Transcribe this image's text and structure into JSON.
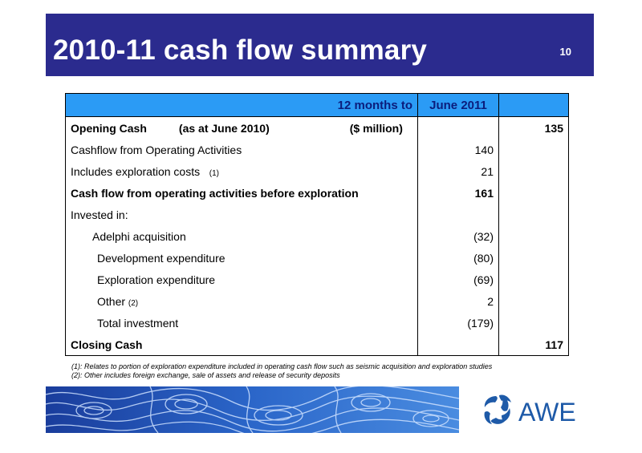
{
  "header": {
    "title": "2010-11 cash flow summary",
    "page_number": "10"
  },
  "table": {
    "head": {
      "period_label": "12 months to",
      "period_value": "June 2011"
    },
    "opening": {
      "label": "Opening Cash",
      "as_at": "(as at June 2010)",
      "units": "($ million)",
      "total": "135"
    },
    "rows": [
      {
        "label": "Cashflow from Operating Activities",
        "value": "140"
      },
      {
        "label": "Includes exploration costs",
        "note": "(1)",
        "value": "21"
      },
      {
        "label": "Cash flow from operating activities before exploration",
        "value": "161"
      },
      {
        "label": "Invested in:",
        "value": ""
      },
      {
        "label": "Adelphi acquisition",
        "value": "(32)"
      },
      {
        "label": "Development expenditure",
        "value": "(80)"
      },
      {
        "label": "Exploration expenditure",
        "value": "(69)"
      },
      {
        "label": "Other",
        "note": "(2)",
        "value": "2"
      },
      {
        "label": "Total investment",
        "value": "(179)"
      }
    ],
    "closing": {
      "label": "Closing Cash",
      "total": "117"
    }
  },
  "footnotes": [
    "(1):  Relates to portion of exploration expenditure included in operating cash flow such as seismic acquisition and exploration studies",
    "(2):  Other includes foreign exchange, sale of assets and release of security deposits"
  ],
  "logo": {
    "text": "AWE",
    "icon": "awe-tri-swirl-icon",
    "color": "#1e5aa8"
  },
  "colors": {
    "title_bar": "#2b2b8e",
    "table_header": "#2b9bf5",
    "header_text": "#0b1d7c"
  }
}
